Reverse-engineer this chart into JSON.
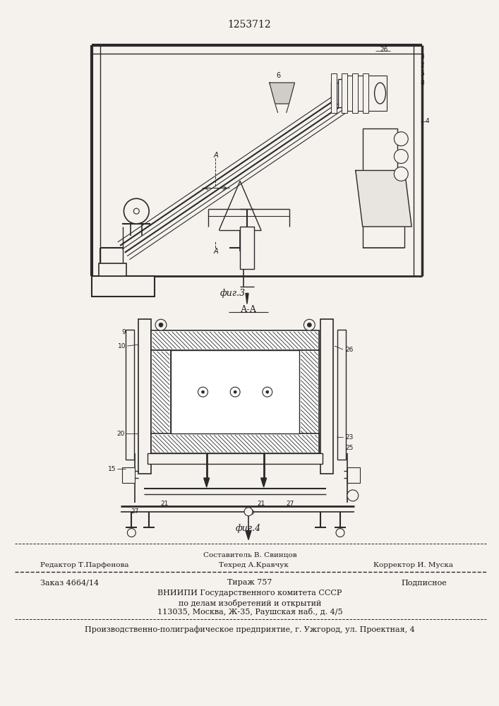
{
  "patent_number": "1253712",
  "fig3_label": "фиг.3",
  "fig4_label": "фиг.4",
  "section_label": "А-А",
  "editor_line": "Редактор Т.Парфенова",
  "composer_line": "Составитель В. Свинцов",
  "techred_line": "Техред А.Кравчук",
  "corrector_line": "Корректор И. Муска",
  "order_line": "Заказ 4664/14",
  "tirazh_line": "Тираж 757",
  "podpisnoe_line": "Подписное",
  "vniip1": "ВНИИПИ Государственного комитета СССР",
  "vniip2": "по делам изобретений и открытий",
  "vniip3": "113035, Москва, Ж-35, Раушская наб., д. 4/5",
  "printer_line": "Производственно-полиграфическое предприятие, г. Ужгород, ул. Проектная, 4",
  "bg_color": "#f5f2ee",
  "line_color": "#2a2a2a",
  "text_color": "#1a1a1a"
}
